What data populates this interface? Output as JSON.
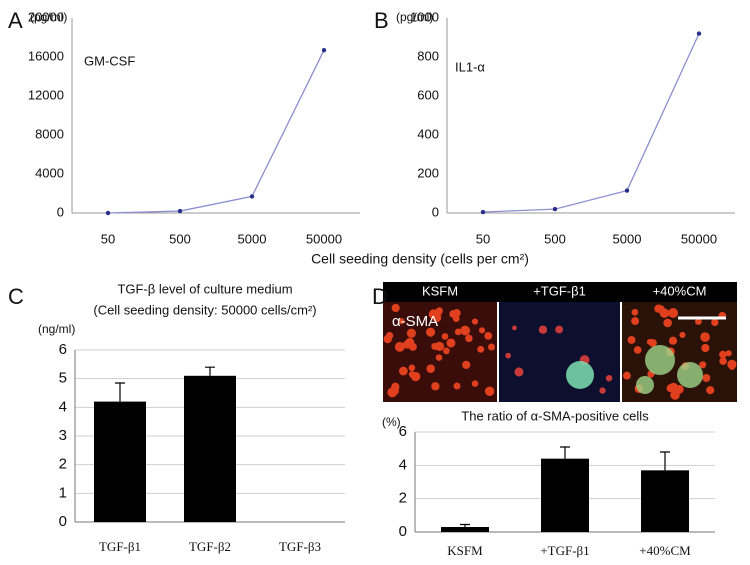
{
  "chart_data": [
    {
      "type": "line",
      "label": "A",
      "unit": "(pg/ml)",
      "annotation": "GM-CSF",
      "xlabel": "Cell seeding density (cells per cm²)",
      "categories": [
        "50",
        "500",
        "5000",
        "50000"
      ],
      "values": [
        0,
        200,
        1700,
        16700
      ],
      "color": "#8c8fd0",
      "marker_color": "#2a2f8a",
      "ylim": [
        0,
        20000
      ],
      "yticks": [
        0,
        4000,
        8000,
        12000,
        16000,
        20000
      ],
      "grid": false
    },
    {
      "type": "line",
      "label": "B",
      "unit": "(pg/ml)",
      "annotation": "IL1-α",
      "categories": [
        "50",
        "500",
        "5000",
        "50000"
      ],
      "values": [
        5,
        20,
        115,
        920
      ],
      "color": "#8c8fd0",
      "marker_color": "#2a2f8a",
      "ylim": [
        0,
        1000
      ],
      "yticks": [
        0,
        200,
        400,
        600,
        800,
        1000
      ],
      "grid": false
    },
    {
      "type": "bar",
      "label": "C",
      "title": "TGF-β level of culture medium",
      "subtitle": "(Cell seeding density: 50000 cells/cm²)",
      "unit": "(ng/ml)",
      "categories": [
        "TGF-β1",
        "TGF-β2",
        "TGF-β3"
      ],
      "values": [
        4.2,
        5.1,
        0
      ],
      "errors": [
        0.65,
        0.3,
        0
      ],
      "color": "#000000",
      "ylim": [
        0,
        6
      ],
      "yticks": [
        0,
        1,
        2,
        3,
        4,
        5,
        6
      ],
      "grid": true
    },
    {
      "type": "bar",
      "label": "D",
      "title": "The ratio of α-SMA-positive cells",
      "unit": "(%)",
      "images": [
        "KSFM",
        "+TGF-β1",
        "+40%CM"
      ],
      "stain": "α-SMA",
      "categories": [
        "KSFM",
        "+TGF-β1",
        "+40%CM"
      ],
      "values": [
        0.3,
        4.4,
        3.7
      ],
      "errors": [
        0.15,
        0.7,
        1.1
      ],
      "color": "#000000",
      "ylim": [
        0,
        6
      ],
      "yticks": [
        0,
        2,
        4,
        6
      ],
      "grid": true
    }
  ]
}
